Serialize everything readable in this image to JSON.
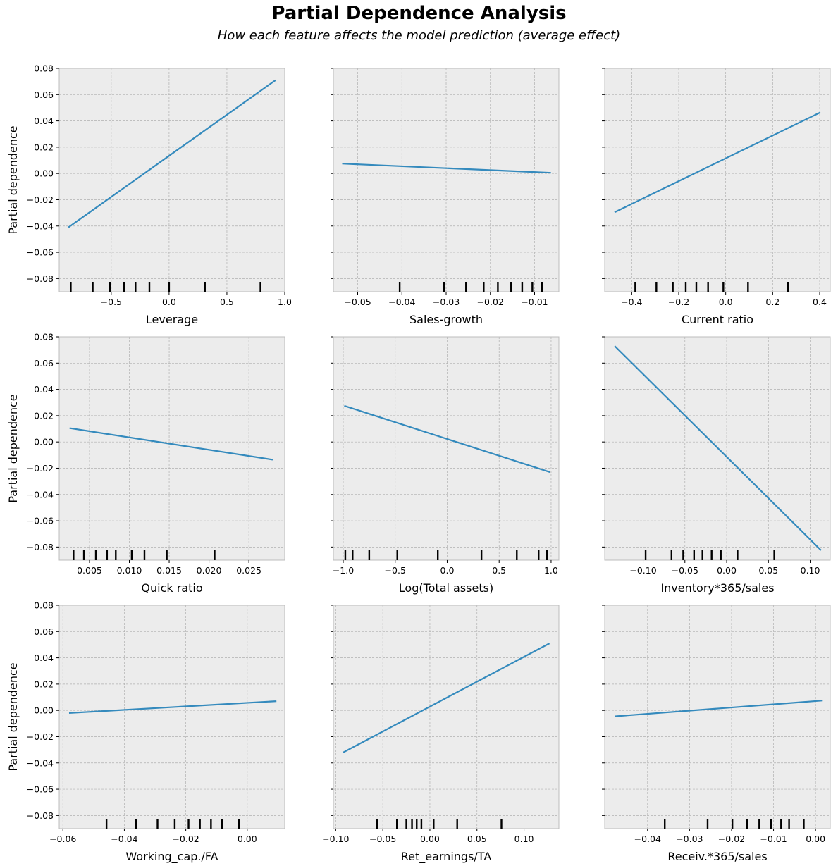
{
  "title": "Partial Dependence Analysis",
  "subtitle": "How each feature affects the model prediction (average effect)",
  "colors": {
    "line": "#348abd",
    "panel_bg": "#ececec",
    "grid": "#b0b0b0",
    "frame": "#bcbcbc",
    "rug": "#000000"
  },
  "chart_data": [
    {
      "type": "line",
      "xlabel": "Leverage",
      "ylabel": "Partial dependence",
      "xlim": [
        -0.95,
        1.0
      ],
      "ylim": [
        -0.09,
        0.08
      ],
      "xticks": [
        -0.5,
        0.0,
        0.5,
        1.0
      ],
      "xtick_labels": [
        "−0.5",
        "0.0",
        "0.5",
        "1.0"
      ],
      "yticks": [
        -0.08,
        -0.06,
        -0.04,
        -0.02,
        0.0,
        0.02,
        0.04,
        0.06,
        0.08
      ],
      "ytick_labels": [
        "−0.08",
        "−0.06",
        "−0.04",
        "−0.02",
        "0.00",
        "0.02",
        "0.04",
        "0.06",
        "0.08"
      ],
      "line": {
        "x": [
          -0.87,
          0.92
        ],
        "y": [
          -0.041,
          0.071
        ]
      },
      "rug": [
        -0.85,
        -0.66,
        -0.51,
        -0.39,
        -0.29,
        -0.17,
        0.0,
        0.31,
        0.79
      ]
    },
    {
      "type": "line",
      "xlabel": "Sales-growth",
      "ylabel": "",
      "xlim": [
        -0.0555,
        -0.0045
      ],
      "ylim": [
        -0.09,
        0.08
      ],
      "xticks": [
        -0.05,
        -0.04,
        -0.03,
        -0.02,
        -0.01
      ],
      "xtick_labels": [
        "−0.05",
        "−0.04",
        "−0.03",
        "−0.02",
        "−0.01"
      ],
      "yticks": [
        -0.08,
        -0.06,
        -0.04,
        -0.02,
        0.0,
        0.02,
        0.04,
        0.06,
        0.08
      ],
      "ytick_labels": [],
      "line": {
        "x": [
          -0.0535,
          -0.0063
        ],
        "y": [
          0.0075,
          0.0005
        ]
      },
      "rug": [
        -0.0405,
        -0.0305,
        -0.0255,
        -0.0215,
        -0.0183,
        -0.0153,
        -0.0128,
        -0.0105,
        -0.0083
      ]
    },
    {
      "type": "line",
      "xlabel": "Current ratio",
      "ylabel": "",
      "xlim": [
        -0.515,
        0.445
      ],
      "ylim": [
        -0.09,
        0.08
      ],
      "xticks": [
        -0.4,
        -0.2,
        0.0,
        0.2,
        0.4
      ],
      "xtick_labels": [
        "−0.4",
        "−0.2",
        "0.0",
        "0.2",
        "0.4"
      ],
      "yticks": [
        -0.08,
        -0.06,
        -0.04,
        -0.02,
        0.0,
        0.02,
        0.04,
        0.06,
        0.08
      ],
      "ytick_labels": [],
      "line": {
        "x": [
          -0.473,
          0.403
        ],
        "y": [
          -0.0295,
          0.0465
        ]
      },
      "rug": [
        -0.385,
        -0.295,
        -0.225,
        -0.17,
        -0.125,
        -0.075,
        -0.01,
        0.095,
        0.265
      ]
    },
    {
      "type": "line",
      "xlabel": "Quick ratio",
      "ylabel": "Partial dependence",
      "xlim": [
        0.0012,
        0.0295
      ],
      "ylim": [
        -0.09,
        0.08
      ],
      "xticks": [
        0.005,
        0.01,
        0.015,
        0.02,
        0.025
      ],
      "xtick_labels": [
        "0.005",
        "0.010",
        "0.015",
        "0.020",
        "0.025"
      ],
      "yticks": [
        -0.08,
        -0.06,
        -0.04,
        -0.02,
        0.0,
        0.02,
        0.04,
        0.06,
        0.08
      ],
      "ytick_labels": [
        "−0.08",
        "−0.06",
        "−0.04",
        "−0.02",
        "0.00",
        "0.02",
        "0.04",
        "0.06",
        "0.08"
      ],
      "line": {
        "x": [
          0.0025,
          0.028
        ],
        "y": [
          0.0105,
          -0.0135
        ]
      },
      "rug": [
        0.003,
        0.0043,
        0.0058,
        0.0072,
        0.0083,
        0.0103,
        0.0119,
        0.0147,
        0.0207
      ]
    },
    {
      "type": "line",
      "xlabel": "Log(Total assets)",
      "ylabel": "",
      "xlim": [
        -1.095,
        1.075
      ],
      "ylim": [
        -0.09,
        0.08
      ],
      "xticks": [
        -1.0,
        -0.5,
        0.0,
        0.5,
        1.0
      ],
      "xtick_labels": [
        "−1.0",
        "−0.5",
        "0.0",
        "0.5",
        "1.0"
      ],
      "yticks": [
        -0.08,
        -0.06,
        -0.04,
        -0.02,
        0.0,
        0.02,
        0.04,
        0.06,
        0.08
      ],
      "ytick_labels": [],
      "line": {
        "x": [
          -0.99,
          0.99
        ],
        "y": [
          0.0275,
          -0.023
        ]
      },
      "rug": [
        -0.98,
        -0.91,
        -0.75,
        -0.48,
        -0.09,
        0.33,
        0.67,
        0.88,
        0.96
      ]
    },
    {
      "type": "line",
      "xlabel": "Inventory*365/sales",
      "ylabel": "",
      "xlim": [
        -0.146,
        0.124
      ],
      "ylim": [
        -0.09,
        0.08
      ],
      "xticks": [
        -0.1,
        -0.05,
        0.0,
        0.05,
        0.1
      ],
      "xtick_labels": [
        "−0.10",
        "−0.05",
        "0.00",
        "0.05",
        "0.10"
      ],
      "yticks": [
        -0.08,
        -0.06,
        -0.04,
        -0.02,
        0.0,
        0.02,
        0.04,
        0.06,
        0.08
      ],
      "ytick_labels": [],
      "line": {
        "x": [
          -0.134,
          0.113
        ],
        "y": [
          0.073,
          -0.0825
        ]
      },
      "rug": [
        -0.097,
        -0.066,
        -0.052,
        -0.039,
        -0.029,
        -0.018,
        -0.007,
        0.013,
        0.057
      ]
    },
    {
      "type": "line",
      "xlabel": "Working_cap./FA",
      "ylabel": "Partial dependence",
      "xlim": [
        -0.0612,
        0.0122
      ],
      "ylim": [
        -0.09,
        0.08
      ],
      "xticks": [
        -0.06,
        -0.04,
        -0.02,
        0.0
      ],
      "xtick_labels": [
        "−0.06",
        "−0.04",
        "−0.02",
        "0.00"
      ],
      "yticks": [
        -0.08,
        -0.06,
        -0.04,
        -0.02,
        0.0,
        0.02,
        0.04,
        0.06,
        0.08
      ],
      "ytick_labels": [
        "−0.08",
        "−0.06",
        "−0.04",
        "−0.02",
        "0.00",
        "0.02",
        "0.04",
        "0.06",
        "0.08"
      ],
      "line": {
        "x": [
          -0.058,
          0.0095
        ],
        "y": [
          -0.002,
          0.007
        ]
      },
      "rug": [
        -0.0458,
        -0.0362,
        -0.0292,
        -0.0236,
        -0.0191,
        -0.0154,
        -0.0118,
        -0.0082,
        -0.0027
      ]
    },
    {
      "type": "line",
      "xlabel": "Ret_earnings/TA",
      "ylabel": "",
      "xlim": [
        -0.1025,
        0.137
      ],
      "ylim": [
        -0.09,
        0.08
      ],
      "xticks": [
        -0.1,
        -0.05,
        0.0,
        0.05,
        0.1
      ],
      "xtick_labels": [
        "−0.10",
        "−0.05",
        "0.00",
        "0.05",
        "0.10"
      ],
      "yticks": [
        -0.08,
        -0.06,
        -0.04,
        -0.02,
        0.0,
        0.02,
        0.04,
        0.06,
        0.08
      ],
      "ytick_labels": [],
      "line": {
        "x": [
          -0.092,
          0.127
        ],
        "y": [
          -0.032,
          0.051
        ]
      },
      "rug": [
        -0.056,
        -0.035,
        -0.025,
        -0.019,
        -0.014,
        -0.009,
        0.004,
        0.029,
        0.076
      ]
    },
    {
      "type": "line",
      "xlabel": "Receiv.*365/sales",
      "ylabel": "",
      "xlim": [
        -0.0502,
        0.0035
      ],
      "ylim": [
        -0.09,
        0.08
      ],
      "xticks": [
        -0.04,
        -0.03,
        -0.02,
        -0.01,
        0.0
      ],
      "xtick_labels": [
        "−0.04",
        "−0.03",
        "−0.02",
        "−0.01",
        "0.00"
      ],
      "yticks": [
        -0.08,
        -0.06,
        -0.04,
        -0.02,
        0.0,
        0.02,
        0.04,
        0.06,
        0.08
      ],
      "ytick_labels": [],
      "line": {
        "x": [
          -0.0478,
          0.0017
        ],
        "y": [
          -0.0045,
          0.0075
        ]
      },
      "rug": [
        -0.0359,
        -0.0257,
        -0.0198,
        -0.0163,
        -0.0134,
        -0.0106,
        -0.0082,
        -0.0063,
        -0.0028
      ]
    }
  ]
}
